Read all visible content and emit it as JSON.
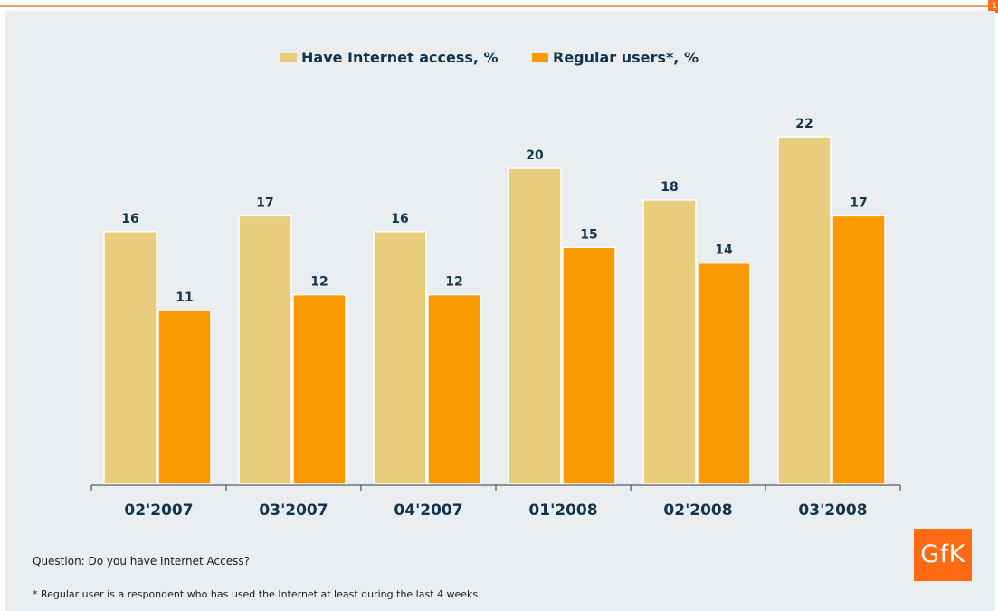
{
  "page_number": "1",
  "question": "Question: Do you have Internet Access?",
  "footnote": "* Regular user is a respondent who has used the Internet at least during the last 4 weeks",
  "logo_text": "GfK",
  "colors": {
    "have_access": "#e8cd7c",
    "regular_users": "#fa9a00",
    "label_text": "#12344d",
    "accent": "#ff6a13"
  },
  "chart_data": {
    "type": "bar",
    "categories": [
      "02'2007",
      "03'2007",
      "04'2007",
      "01'2008",
      "02'2008",
      "03'2008"
    ],
    "series": [
      {
        "name": "Have Internet access, %",
        "values": [
          16,
          17,
          16,
          20,
          18,
          22
        ]
      },
      {
        "name": "Regular users*, %",
        "values": [
          11,
          12,
          12,
          15,
          14,
          17
        ]
      }
    ],
    "title": "",
    "xlabel": "",
    "ylabel": "",
    "ylim": [
      0,
      22
    ],
    "legend": "top-center",
    "grid": false
  }
}
